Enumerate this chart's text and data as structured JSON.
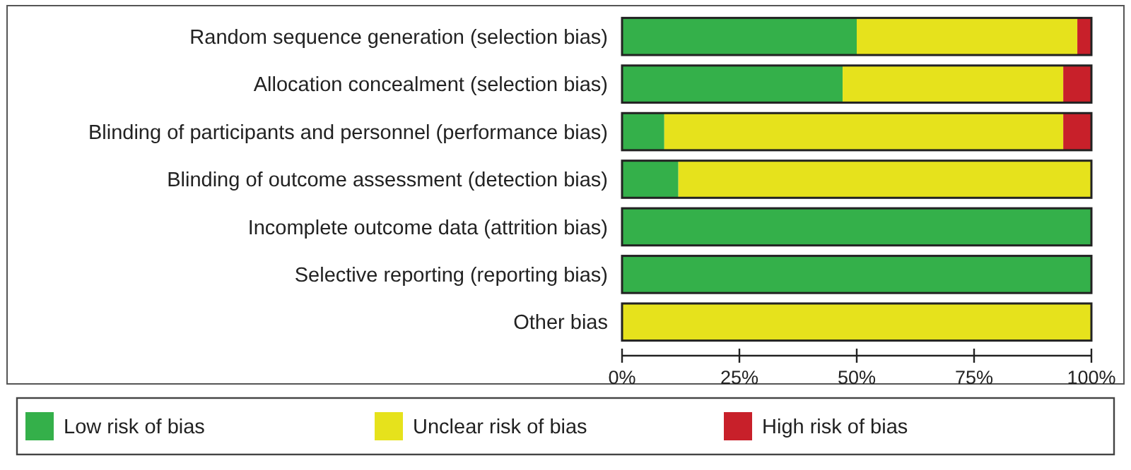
{
  "chart_data": {
    "type": "bar",
    "orientation": "horizontal",
    "stacked": true,
    "categories": [
      "Random sequence generation (selection bias)",
      "Allocation concealment (selection bias)",
      "Blinding of participants and personnel (performance bias)",
      "Blinding of outcome assessment (detection bias)",
      "Incomplete outcome data (attrition bias)",
      "Selective reporting (reporting bias)",
      "Other bias"
    ],
    "series": [
      {
        "name": "Low risk of bias",
        "color": "#34b04a",
        "values": [
          50,
          47,
          9,
          12,
          100,
          100,
          0
        ]
      },
      {
        "name": "Unclear risk of bias",
        "color": "#e6e21c",
        "values": [
          47,
          47,
          85,
          88,
          0,
          0,
          100
        ]
      },
      {
        "name": "High risk of bias",
        "color": "#c8202a",
        "values": [
          3,
          6,
          6,
          0,
          0,
          0,
          0
        ]
      }
    ],
    "xlim": [
      0,
      100
    ],
    "xticks": [
      {
        "value": 0,
        "label": "0%"
      },
      {
        "value": 25,
        "label": "25%"
      },
      {
        "value": 50,
        "label": "50%"
      },
      {
        "value": 75,
        "label": "75%"
      },
      {
        "value": 100,
        "label": "100%"
      }
    ],
    "grid": false,
    "legend": "bottom"
  }
}
